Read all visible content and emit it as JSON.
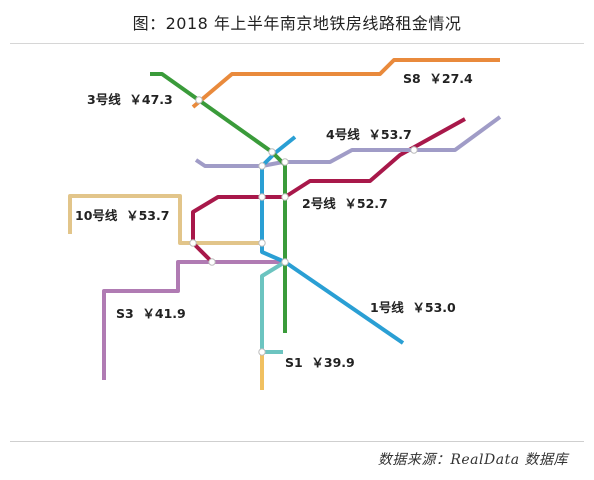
{
  "title": "图：2018 年上半年南京地铁房线路租金情况",
  "source": "数据来源：RealData 数据库",
  "colors": {
    "line_1": "#2a9fd4",
    "line_2": "#a8184a",
    "line_3": "#3a9b3a",
    "line_4": "#a09cc7",
    "line_10": "#e2c58a",
    "line_s1": "#6cc4c0",
    "line_s3": "#b07bb3",
    "line_s8": "#e98a3c",
    "line_s1_extension": "#f0c060"
  },
  "lines": [
    {
      "id": "s8",
      "label": "S8  ￥27.4"
    },
    {
      "id": "3",
      "label": "3号线  ￥47.3"
    },
    {
      "id": "4",
      "label": "4号线  ￥53.7"
    },
    {
      "id": "10",
      "label": "10号线  ￥53.7"
    },
    {
      "id": "2",
      "label": "2号线  ￥52.7"
    },
    {
      "id": "s3",
      "label": "S3  ￥41.9"
    },
    {
      "id": "1",
      "label": "1号线  ￥53.0"
    },
    {
      "id": "s1",
      "label": "S1  ￥39.9"
    }
  ]
}
